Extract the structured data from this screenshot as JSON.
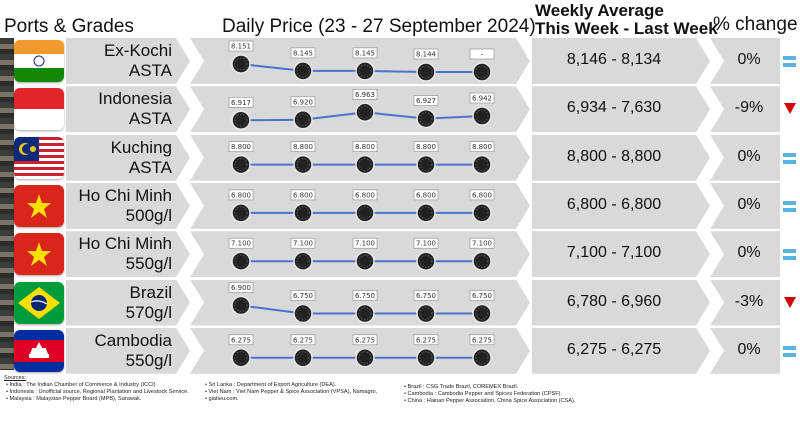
{
  "headers": {
    "ports": "Ports & Grades",
    "daily": "Daily Price (23 - 27 September 2024)",
    "weekly_line1": "Weekly Average",
    "weekly_line2": "This Week - Last Week",
    "pct": "% change"
  },
  "colors": {
    "panel": "#d9d9d9",
    "line": "#4a74c9",
    "equal": "#5ab4e6",
    "down": "#d00000"
  },
  "rows": [
    {
      "flag": "india-flag",
      "name1": "Ex-Kochi",
      "name2": "ASTA",
      "labels": [
        "8.151",
        "8.145",
        "8.145",
        "8.144",
        "-"
      ],
      "weekly": "8,146 - 8,134",
      "pct": "0%",
      "indicator": "equal-icon"
    },
    {
      "flag": "indonesia-flag",
      "name1": "Indonesia",
      "name2": "ASTA",
      "labels": [
        "6.917",
        "6.920",
        "6.963",
        "6.927",
        "6.942"
      ],
      "weekly": "6,934 - 7,630",
      "pct": "-9%",
      "indicator": "down-triangle-icon"
    },
    {
      "flag": "malaysia-flag",
      "name1": "Kuching",
      "name2": "ASTA",
      "labels": [
        "8.800",
        "8.800",
        "8.800",
        "8.800",
        "8.800"
      ],
      "weekly": "8,800 - 8,800",
      "pct": "0%",
      "indicator": "equal-icon"
    },
    {
      "flag": "vietnam-flag",
      "name1": "Ho Chi Minh",
      "name2": "500g/l",
      "labels": [
        "6.800",
        "6.800",
        "6.800",
        "6.800",
        "6.800"
      ],
      "weekly": "6,800 - 6,800",
      "pct": "0%",
      "indicator": "equal-icon"
    },
    {
      "flag": "vietnam-flag",
      "name1": "Ho Chi Minh",
      "name2": "550g/l",
      "labels": [
        "7.100",
        "7.100",
        "7.100",
        "7.100",
        "7.100"
      ],
      "weekly": "7,100 - 7,100",
      "pct": "0%",
      "indicator": "equal-icon"
    },
    {
      "flag": "brazil-flag",
      "name1": "Brazil",
      "name2": "570g/l",
      "labels": [
        "6.900",
        "6.750",
        "6.750",
        "6.750",
        "6.750"
      ],
      "weekly": "6,780 - 6,960",
      "pct": "-3%",
      "indicator": "down-triangle-icon"
    },
    {
      "flag": "cambodia-flag",
      "name1": "Cambodia",
      "name2": "550g/l",
      "labels": [
        "6.275",
        "6.275",
        "6.275",
        "6.275",
        "6.275"
      ],
      "weekly": "6,275 - 6,275",
      "pct": "0%",
      "indicator": "equal-icon"
    }
  ],
  "chart_data": {
    "type": "line",
    "title": "Daily Price (23 - 27 September 2024)",
    "series": [
      {
        "name": "Ex-Kochi ASTA",
        "values": [
          8151,
          8145,
          8145,
          8144,
          null
        ]
      },
      {
        "name": "Indonesia ASTA",
        "values": [
          6917,
          6920,
          6963,
          6927,
          6942
        ]
      },
      {
        "name": "Kuching ASTA",
        "values": [
          8800,
          8800,
          8800,
          8800,
          8800
        ]
      },
      {
        "name": "Ho Chi Minh 500g/l",
        "values": [
          6800,
          6800,
          6800,
          6800,
          6800
        ]
      },
      {
        "name": "Ho Chi Minh 550g/l",
        "values": [
          7100,
          7100,
          7100,
          7100,
          7100
        ]
      },
      {
        "name": "Brazil 570g/l",
        "values": [
          6900,
          6750,
          6750,
          6750,
          6750
        ]
      },
      {
        "name": "Cambodia 550g/l",
        "values": [
          6275,
          6275,
          6275,
          6275,
          6275
        ]
      }
    ]
  },
  "sources": {
    "title": "Sources:",
    "col1": [
      "India : The Indian Chamber of Commerce & Industry (ICCI)",
      "Indonesia : Unofficial source, Regional Plantation and Livestock Service.",
      "Malaysia : Malaysian Pepper Board (MPB), Sarawak."
    ],
    "col2": [
      "Sri Lanka : Department of Export Agriculture (DEA).",
      "Viet Nam : Viet Nam Pepper & Spice Association (VPSA), Namagro,",
      "giatieu.com."
    ],
    "col3": [
      "Brazil : CSG Trade Brazil, COREMEX Brazil.",
      "Cambodia : Cambodia Pepper and Spices Federation (CPSF).",
      "China : Hainan Pepper Association, China Spice Association (CSA)."
    ]
  }
}
